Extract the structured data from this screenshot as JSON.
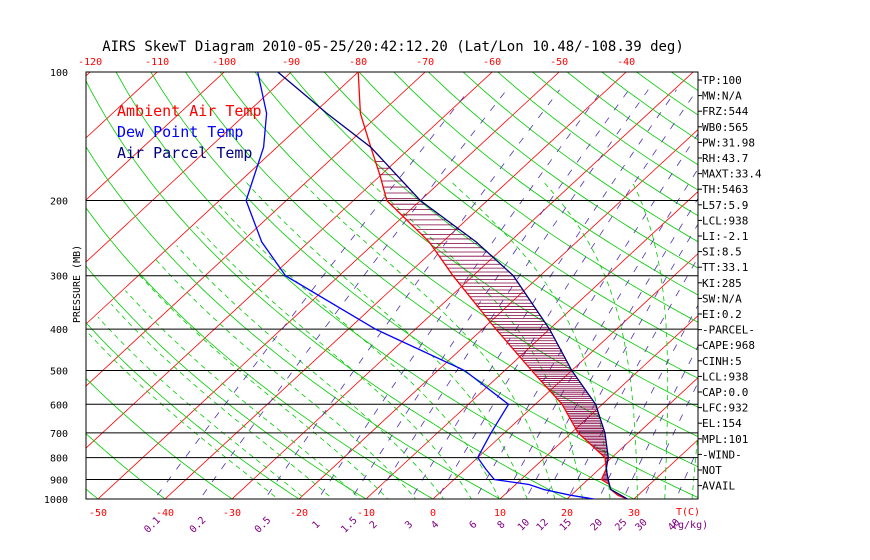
{
  "chart_data": {
    "type": "line",
    "title": "AIRS SkewT Diagram 2010-05-25/20:42:12.20 (Lat/Lon 10.48/-108.39 deg)",
    "ylabel": "PRESSURE (MB)",
    "xlabel_temp": "T(C)",
    "xlabel_mix": "(g/kg)",
    "ylim": [
      1000,
      100
    ],
    "xlim_bottom": [
      -50,
      30
    ],
    "xlim_top": [
      -120,
      -40
    ],
    "y_ticks": [
      "100",
      "200",
      "300",
      "400",
      "500",
      "600",
      "700",
      "800",
      "900",
      "1000"
    ],
    "x_ticks_bottom": [
      "-50",
      "-40",
      "-30",
      "-20",
      "-10",
      "0",
      "10",
      "20",
      "30"
    ],
    "x_ticks_top": [
      "-120",
      "-110",
      "-100",
      "-90",
      "-80",
      "-70",
      "-60",
      "-50",
      "-40"
    ],
    "mixing_ratio_labels": [
      "0.1",
      "0.2",
      "0.5",
      "1",
      "1.5",
      "2",
      "3",
      "4",
      "6",
      "8",
      "10",
      "12",
      "15",
      "20",
      "25",
      "30",
      "40"
    ],
    "mixing_ratio_values": [
      0.1,
      0.2,
      0.5,
      1,
      1.5,
      2,
      3,
      4,
      6,
      8,
      10,
      12,
      15,
      20,
      25,
      30,
      40
    ],
    "legend": [
      {
        "label": "Ambient Air Temp",
        "color": "#ff0000"
      },
      {
        "label": "Dew Point Temp",
        "color": "#0000ff"
      },
      {
        "label": "Air Parcel Temp",
        "color": "#000080"
      }
    ],
    "series": [
      {
        "name": "Ambient Air Temp",
        "color": "#ff0000",
        "points": [
          [
            1000,
            29
          ],
          [
            980,
            27
          ],
          [
            950,
            25
          ],
          [
            925,
            24
          ],
          [
            900,
            22
          ],
          [
            850,
            21
          ],
          [
            800,
            19
          ],
          [
            700,
            11
          ],
          [
            600,
            4
          ],
          [
            500,
            -6
          ],
          [
            400,
            -18
          ],
          [
            300,
            -33
          ],
          [
            250,
            -42
          ],
          [
            200,
            -55
          ],
          [
            175,
            -60
          ],
          [
            150,
            -66
          ],
          [
            125,
            -73
          ],
          [
            100,
            -80
          ]
        ]
      },
      {
        "name": "Dew Point Temp",
        "color": "#0000ff",
        "points": [
          [
            1000,
            24
          ],
          [
            980,
            20
          ],
          [
            950,
            15
          ],
          [
            925,
            12
          ],
          [
            900,
            6
          ],
          [
            850,
            3
          ],
          [
            800,
            0
          ],
          [
            700,
            -2
          ],
          [
            600,
            -4
          ],
          [
            500,
            -16
          ],
          [
            400,
            -36
          ],
          [
            300,
            -58
          ],
          [
            250,
            -67
          ],
          [
            200,
            -76
          ],
          [
            150,
            -82
          ],
          [
            125,
            -87
          ],
          [
            100,
            -95
          ]
        ]
      },
      {
        "name": "Air Parcel Temp",
        "color": "#000080",
        "points": [
          [
            1000,
            29
          ],
          [
            950,
            25
          ],
          [
            938,
            24.5
          ],
          [
            900,
            23
          ],
          [
            850,
            21
          ],
          [
            800,
            19.5
          ],
          [
            700,
            15
          ],
          [
            600,
            9
          ],
          [
            500,
            0
          ],
          [
            400,
            -10
          ],
          [
            300,
            -24
          ],
          [
            250,
            -35
          ],
          [
            200,
            -50
          ],
          [
            150,
            -66
          ],
          [
            125,
            -78
          ],
          [
            100,
            -92
          ]
        ]
      }
    ],
    "indices": [
      "TP:100",
      "MW:N/A",
      "FRZ:544",
      "WB0:565",
      "PW:31.98",
      "RH:43.7",
      "MAXT:33.4",
      "TH:5463",
      "L57:5.9",
      "LCL:938",
      "LI:-2.1",
      "SI:8.5",
      "TT:33.1",
      "KI:285",
      "SW:N/A",
      "EI:0.2",
      "-PARCEL-",
      "CAPE:968",
      "CINH:5",
      "LCL:938",
      "CAP:0.0",
      "LFC:932",
      "EL:154",
      "MPL:101",
      "-WIND-",
      "NOT",
      "AVAIL"
    ],
    "colors": {
      "isotherm": "#ff0000",
      "dry_adiabat": "#00cc00",
      "moist_adiabat": "#00cc00",
      "mixing_ratio": "#5030b0",
      "isobar": "#000000",
      "temp_tick_label": "#ff0000",
      "mix_label": "#800080",
      "hatch": "#800040"
    },
    "grid": true,
    "skew": "skew-T log-p",
    "legend_position": "top-left"
  }
}
